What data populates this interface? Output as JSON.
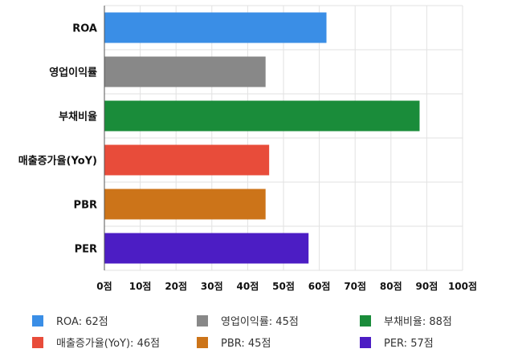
{
  "chart_data": {
    "type": "bar",
    "orientation": "horizontal",
    "categories": [
      "ROA",
      "영업이익률",
      "부채비율",
      "매출증가율(YoY)",
      "PBR",
      "PER"
    ],
    "values": [
      62,
      45,
      88,
      46,
      45,
      57
    ],
    "colors": [
      "#3a8ee6",
      "#888888",
      "#1a8c3a",
      "#e84c3a",
      "#cc7419",
      "#4c1dc4"
    ],
    "xlim": [
      0,
      100
    ],
    "x_ticks": [
      "0점",
      "10점",
      "20점",
      "30점",
      "40점",
      "50점",
      "60점",
      "70점",
      "80점",
      "90점",
      "100점"
    ],
    "grid": true,
    "legend": {
      "placement": "bottom",
      "items": [
        {
          "label": "ROA: 62점",
          "color": "#3a8ee6"
        },
        {
          "label": "영업이익률: 45점",
          "color": "#888888"
        },
        {
          "label": "부채비율: 88점",
          "color": "#1a8c3a"
        },
        {
          "label": "매출증가율(YoY): 46점",
          "color": "#e84c3a"
        },
        {
          "label": "PBR: 45점",
          "color": "#cc7419"
        },
        {
          "label": "PER: 57점",
          "color": "#4c1dc4"
        }
      ]
    }
  }
}
